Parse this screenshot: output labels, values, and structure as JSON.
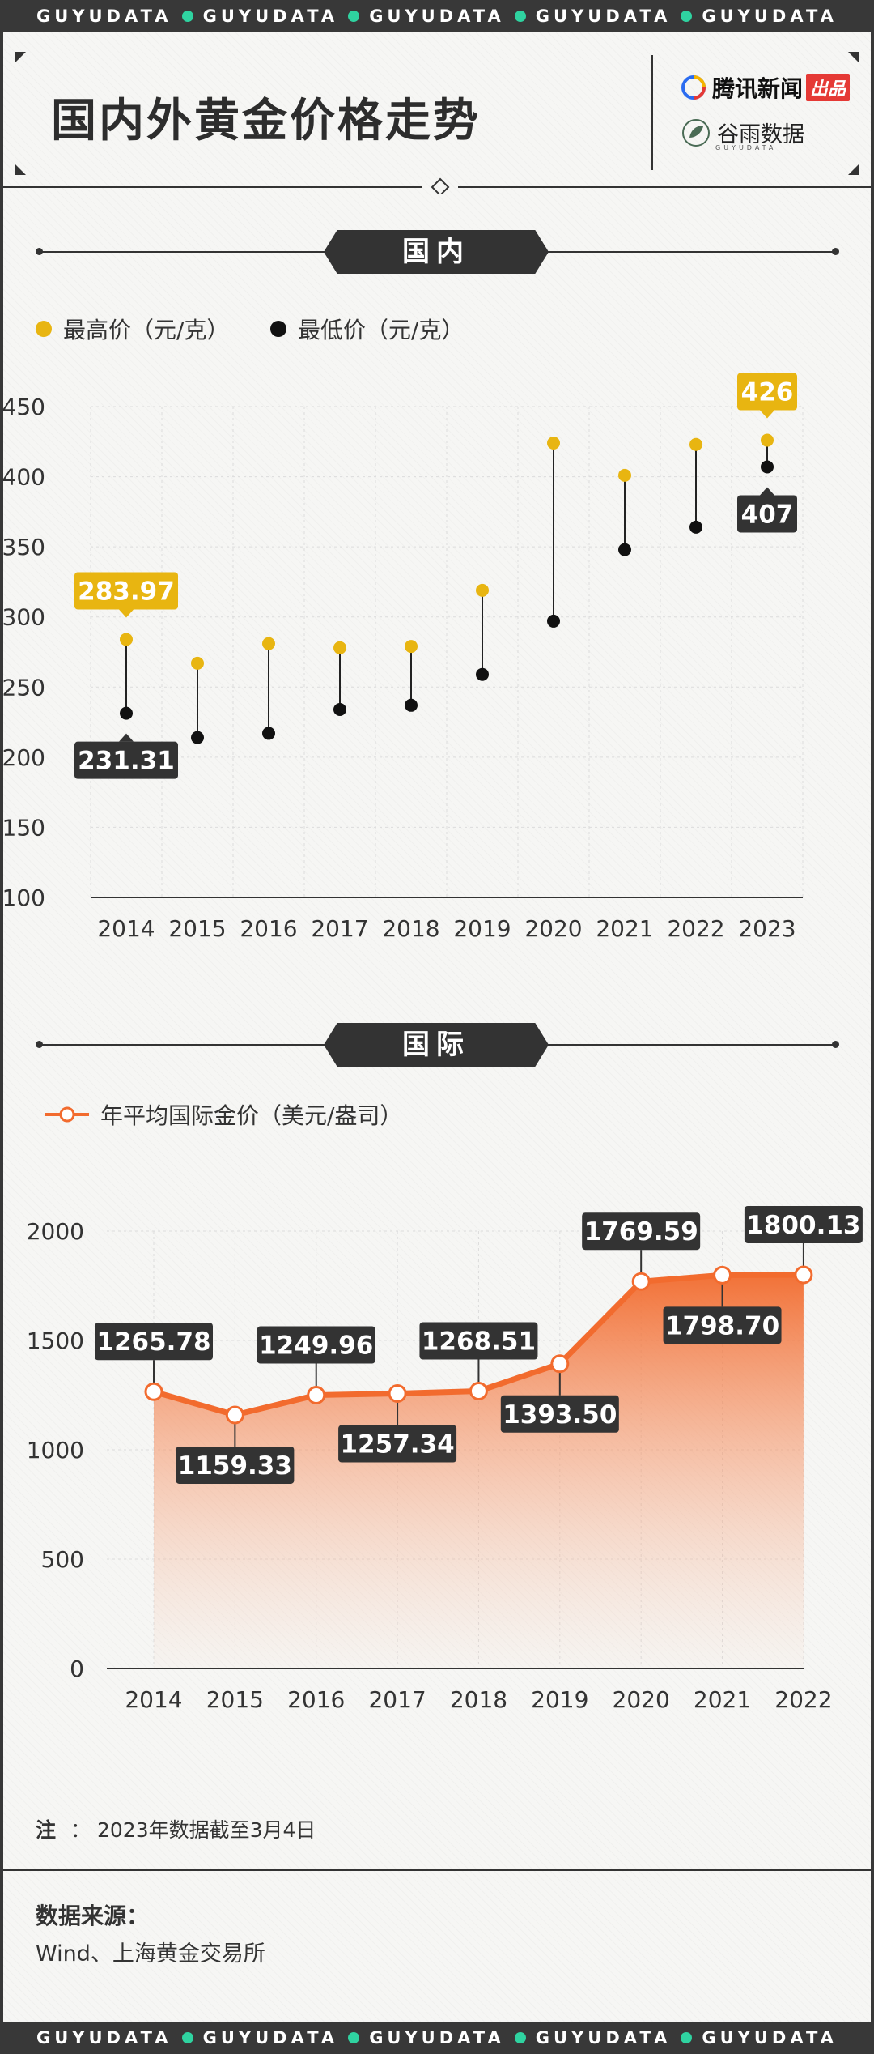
{
  "brand_strip": {
    "word": "GUYUDATA",
    "dot_color": "#2fd3a0"
  },
  "header": {
    "title": "国内外黄金价格走势",
    "logo_tencent": "腾讯新闻",
    "logo_tencent_badge": "出品",
    "logo_guyu": "谷雨数据",
    "logo_guyu_sub": "GUYUDATA"
  },
  "domestic": {
    "banner": "国内",
    "legend_high": "最高价（元/克）",
    "legend_low": "最低价（元/克）"
  },
  "international": {
    "banner": "国际",
    "legend": "年平均国际金价（美元/盎司）"
  },
  "footer": {
    "note_label": "注",
    "note_colon": "：",
    "note_text": "2023年数据截至3月4日",
    "source_title": "数据来源：",
    "source_text": "Wind、上海黄金交易所"
  },
  "colors": {
    "gold": "#e8b511",
    "dark": "#333333",
    "orange": "#f26b2e",
    "orange_fill": "#f4a07a",
    "background": "#f6f6f4"
  },
  "chart_data": [
    {
      "type": "dot-range",
      "title": "国内",
      "categories": [
        "2014",
        "2015",
        "2016",
        "2017",
        "2018",
        "2019",
        "2020",
        "2021",
        "2022",
        "2023"
      ],
      "series": [
        {
          "name": "最高价（元/克）",
          "color": "#e8b511",
          "values": [
            283.97,
            267,
            281,
            278,
            279,
            319,
            424,
            401,
            423,
            426
          ]
        },
        {
          "name": "最低价（元/克）",
          "color": "#111111",
          "values": [
            231.31,
            214,
            217,
            234,
            237,
            259,
            297,
            348,
            364,
            407
          ]
        }
      ],
      "labels": [
        {
          "series": 0,
          "index": 0,
          "text": "283.97"
        },
        {
          "series": 1,
          "index": 0,
          "text": "231.31"
        },
        {
          "series": 0,
          "index": 9,
          "text": "426"
        },
        {
          "series": 1,
          "index": 9,
          "text": "407"
        }
      ],
      "yticks": [
        "100",
        "150",
        "200",
        "250",
        "300",
        "350",
        "400",
        "450"
      ],
      "ylim": [
        100,
        450
      ],
      "grid": true
    },
    {
      "type": "area",
      "title": "国际",
      "categories": [
        "2014",
        "2015",
        "2016",
        "2017",
        "2018",
        "2019",
        "2020",
        "2021",
        "2022"
      ],
      "series": [
        {
          "name": "年平均国际金价（美元/盎司）",
          "color": "#f26b2e",
          "values": [
            1265.78,
            1159.33,
            1249.96,
            1257.34,
            1268.51,
            1393.5,
            1769.59,
            1798.7,
            1800.13
          ]
        }
      ],
      "labels": [
        "1265.78",
        "1159.33",
        "1249.96",
        "1257.34",
        "1268.51",
        "1393.50",
        "1769.59",
        "1798.70",
        "1800.13"
      ],
      "yticks": [
        "0",
        "500",
        "1000",
        "1500",
        "2000"
      ],
      "ylim": [
        0,
        2000
      ],
      "grid": true
    }
  ]
}
